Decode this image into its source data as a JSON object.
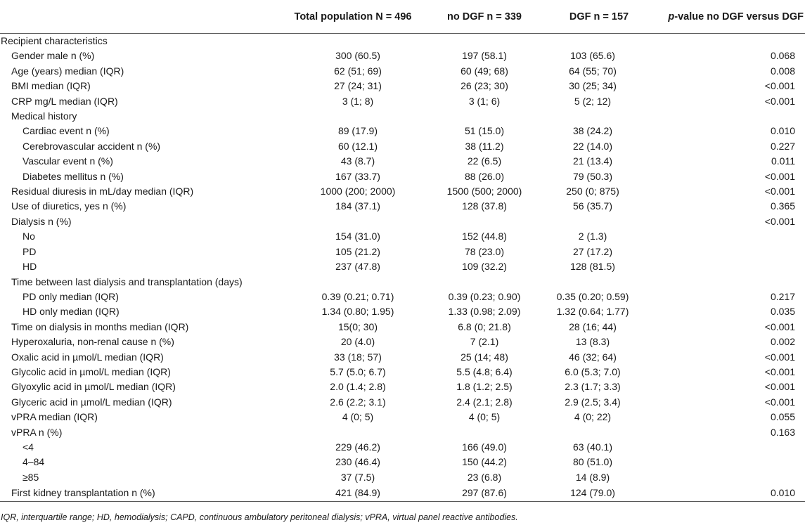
{
  "header": {
    "col0": "",
    "col1": "Total population N = 496",
    "col2": "no DGF n = 339",
    "col3": "DGF n = 157",
    "col4_italic": "p",
    "col4_rest": "-value no DGF versus DGF"
  },
  "rows": [
    {
      "label": "Recipient characteristics",
      "level": 0,
      "total": "",
      "nodgf": "",
      "dgf": "",
      "p": ""
    },
    {
      "label": "Gender male n (%)",
      "level": 1,
      "total": "300 (60.5)",
      "nodgf": "197 (58.1)",
      "dgf": "103 (65.6)",
      "p": "0.068"
    },
    {
      "label": "Age (years) median (IQR)",
      "level": 1,
      "total": "62 (51; 69)",
      "nodgf": "60 (49; 68)",
      "dgf": "64 (55; 70)",
      "p": "0.008"
    },
    {
      "label": "BMI median (IQR)",
      "level": 1,
      "total": "27 (24; 31)",
      "nodgf": "26 (23; 30)",
      "dgf": "30 (25; 34)",
      "p": "<0.001"
    },
    {
      "label": "CRP mg/L median (IQR)",
      "level": 1,
      "total": "3 (1; 8)",
      "nodgf": "3 (1; 6)",
      "dgf": "5 (2; 12)",
      "p": "<0.001"
    },
    {
      "label": "Medical history",
      "level": 1,
      "total": "",
      "nodgf": "",
      "dgf": "",
      "p": ""
    },
    {
      "label": "Cardiac event n (%)",
      "level": 2,
      "total": "89 (17.9)",
      "nodgf": "51 (15.0)",
      "dgf": "38 (24.2)",
      "p": "0.010"
    },
    {
      "label": "Cerebrovascular accident n (%)",
      "level": 2,
      "total": "60 (12.1)",
      "nodgf": "38 (11.2)",
      "dgf": "22 (14.0)",
      "p": "0.227"
    },
    {
      "label": "Vascular event n (%)",
      "level": 2,
      "total": "43 (8.7)",
      "nodgf": "22 (6.5)",
      "dgf": "21 (13.4)",
      "p": "0.011"
    },
    {
      "label": "Diabetes mellitus n (%)",
      "level": 2,
      "total": "167 (33.7)",
      "nodgf": "88 (26.0)",
      "dgf": "79 (50.3)",
      "p": "<0.001"
    },
    {
      "label": "Residual diuresis in mL/day median (IQR)",
      "level": 1,
      "total": "1000 (200; 2000)",
      "nodgf": "1500 (500; 2000)",
      "dgf": "250 (0; 875)",
      "p": "<0.001"
    },
    {
      "label": "Use of diuretics, yes n (%)",
      "level": 1,
      "total": "184 (37.1)",
      "nodgf": "128 (37.8)",
      "dgf": "56 (35.7)",
      "p": "0.365"
    },
    {
      "label": "Dialysis n (%)",
      "level": 1,
      "total": "",
      "nodgf": "",
      "dgf": "",
      "p": "<0.001"
    },
    {
      "label": "No",
      "level": 2,
      "total": "154 (31.0)",
      "nodgf": "152 (44.8)",
      "dgf": "2 (1.3)",
      "p": ""
    },
    {
      "label": "PD",
      "level": 2,
      "total": "105 (21.2)",
      "nodgf": "78 (23.0)",
      "dgf": "27 (17.2)",
      "p": ""
    },
    {
      "label": "HD",
      "level": 2,
      "total": "237 (47.8)",
      "nodgf": "109 (32.2)",
      "dgf": "128 (81.5)",
      "p": ""
    },
    {
      "label": "Time between last dialysis and transplantation (days)",
      "level": 1,
      "total": "",
      "nodgf": "",
      "dgf": "",
      "p": ""
    },
    {
      "label": "PD only median (IQR)",
      "level": 2,
      "total": "0.39 (0.21; 0.71)",
      "nodgf": "0.39 (0.23; 0.90)",
      "dgf": "0.35 (0.20; 0.59)",
      "p": "0.217"
    },
    {
      "label": "HD only median (IQR)",
      "level": 2,
      "total": "1.34 (0.80; 1.95)",
      "nodgf": "1.33 (0.98; 2.09)",
      "dgf": "1.32 (0.64; 1.77)",
      "p": "0.035"
    },
    {
      "label": "Time on dialysis in months median (IQR)",
      "level": 1,
      "total": "15(0; 30)",
      "nodgf": "6.8 (0; 21.8)",
      "dgf": "28 (16; 44)",
      "p": "<0.001"
    },
    {
      "label": "Hyperoxaluria, non-renal cause n (%)",
      "level": 1,
      "total": "20 (4.0)",
      "nodgf": "7 (2.1)",
      "dgf": "13 (8.3)",
      "p": "0.002"
    },
    {
      "label": "Oxalic acid in µmol/L median (IQR)",
      "level": 1,
      "total": "33 (18; 57)",
      "nodgf": "25 (14; 48)",
      "dgf": "46 (32; 64)",
      "p": "<0.001"
    },
    {
      "label": "Glycolic acid in µmol/L median (IQR)",
      "level": 1,
      "total": "5.7 (5.0; 6.7)",
      "nodgf": "5.5 (4.8; 6.4)",
      "dgf": "6.0 (5.3; 7.0)",
      "p": "<0.001"
    },
    {
      "label": "Glyoxylic acid in µmol/L median (IQR)",
      "level": 1,
      "total": "2.0 (1.4; 2.8)",
      "nodgf": "1.8 (1.2; 2.5)",
      "dgf": "2.3 (1.7; 3.3)",
      "p": "<0.001"
    },
    {
      "label": "Glyceric acid in µmol/L median (IQR)",
      "level": 1,
      "total": "2.6 (2.2; 3.1)",
      "nodgf": "2.4 (2.1; 2.8)",
      "dgf": "2.9 (2.5; 3.4)",
      "p": "<0.001"
    },
    {
      "label": "vPRA median (IQR)",
      "level": 1,
      "total": "4 (0; 5)",
      "nodgf": "4 (0; 5)",
      "dgf": "4 (0; 22)",
      "p": "0.055"
    },
    {
      "label": "vPRA n (%)",
      "level": 1,
      "total": "",
      "nodgf": "",
      "dgf": "",
      "p": "0.163"
    },
    {
      "label": "<4",
      "level": 2,
      "total": "229 (46.2)",
      "nodgf": "166 (49.0)",
      "dgf": "63 (40.1)",
      "p": ""
    },
    {
      "label": "4–84",
      "level": 2,
      "total": "230 (46.4)",
      "nodgf": "150 (44.2)",
      "dgf": "80 (51.0)",
      "p": ""
    },
    {
      "label": "≥85",
      "level": 2,
      "total": "37 (7.5)",
      "nodgf": "23 (6.8)",
      "dgf": "14 (8.9)",
      "p": ""
    },
    {
      "label": "First kidney transplantation n (%)",
      "level": 1,
      "total": "421 (84.9)",
      "nodgf": "297 (87.6)",
      "dgf": "124 (79.0)",
      "p": "0.010"
    }
  ],
  "footnote": "IQR, interquartile range; HD, hemodialysis; CAPD, continuous ambulatory peritoneal dialysis; vPRA, virtual panel reactive antibodies."
}
